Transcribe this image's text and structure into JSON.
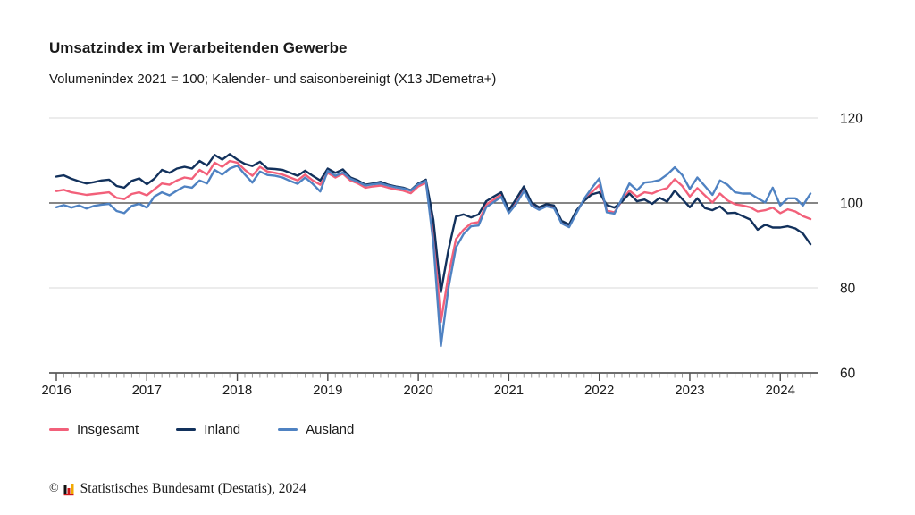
{
  "header": {
    "title": "Umsatzindex im Verarbeitenden Gewerbe",
    "subtitle": "Volumenindex 2021 = 100; Kalender- und saisonbereinigt (X13 JDemetra+)"
  },
  "chart_data": {
    "type": "line",
    "title": "Umsatzindex im Verarbeitenden Gewerbe",
    "subtitle": "Volumenindex 2021 = 100; Kalender- und saisonbereinigt (X13 JDemetra+)",
    "x_frequency": "monthly",
    "x_start": "2016-01",
    "x_end": "2024-05",
    "x_tick_years": [
      2016,
      2017,
      2018,
      2019,
      2020,
      2021,
      2022,
      2023,
      2024
    ],
    "ylim": [
      60,
      120
    ],
    "y_ticks": [
      60,
      80,
      100,
      120
    ],
    "reference_line": 100,
    "grid": "horizontal",
    "legend_position": "bottom",
    "colors": {
      "insgesamt": "#f2607a",
      "inland": "#12315c",
      "ausland": "#4f82c2",
      "reference_line": "#3f3f3f",
      "gridline": "#d9d9d9",
      "axis": "#3f3f3f"
    },
    "series": [
      {
        "name": "Insgesamt",
        "color": "#f2607a",
        "values": [
          102.8,
          103.1,
          102.5,
          102.2,
          101.9,
          102.1,
          102.3,
          102.5,
          101.2,
          100.9,
          102.1,
          102.5,
          101.8,
          103.2,
          104.6,
          104.3,
          105.3,
          106,
          105.7,
          107.8,
          106.7,
          109.5,
          108.5,
          109.9,
          109.5,
          107.8,
          106.4,
          108.5,
          107.4,
          107.1,
          106.7,
          106,
          105.3,
          106.7,
          105.3,
          104.3,
          107.1,
          106,
          106.9,
          105.3,
          104.6,
          103.6,
          103.9,
          104.1,
          103.6,
          103.2,
          102.9,
          102.3,
          103.9,
          104.8,
          93,
          72,
          83,
          91.5,
          93.7,
          95.2,
          95.5,
          99.6,
          100.8,
          101.9,
          98,
          100.4,
          103.4,
          99.8,
          98.7,
          99.5,
          99.1,
          95.5,
          94.6,
          98,
          100.7,
          102.5,
          104.2,
          98.2,
          97.8,
          100.5,
          102.9,
          101.5,
          102.5,
          102.2,
          103,
          103.5,
          105.6,
          104,
          101.5,
          103.5,
          101.8,
          100.1,
          102.2,
          100.6,
          99.7,
          99.4,
          99,
          98,
          98.3,
          98.9,
          97.6,
          98.5,
          98,
          96.9,
          96.2
        ]
      },
      {
        "name": "Inland",
        "color": "#12315c",
        "values": [
          106.2,
          106.5,
          105.7,
          105.1,
          104.6,
          104.9,
          105.3,
          105.5,
          104,
          103.6,
          105.2,
          105.8,
          104.4,
          105.7,
          107.8,
          107.1,
          108.1,
          108.5,
          108.1,
          109.9,
          108.8,
          111.3,
          110.2,
          111.5,
          110.2,
          109.2,
          108.7,
          109.7,
          108.1,
          108,
          107.8,
          107.1,
          106.4,
          107.6,
          106.4,
          105.3,
          108.1,
          107.1,
          107.9,
          106,
          105.3,
          104.3,
          104.6,
          105,
          104.3,
          103.9,
          103.6,
          103,
          104.6,
          105.5,
          96,
          79,
          89,
          96.8,
          97.3,
          96.6,
          97.3,
          100.4,
          101.5,
          102.5,
          98.3,
          101,
          103.9,
          100.1,
          99,
          99.7,
          99.4,
          95.8,
          94.9,
          98.3,
          100.5,
          102,
          102.5,
          99.5,
          98.9,
          100.3,
          102.2,
          100.4,
          100.8,
          99.8,
          101.2,
          100.3,
          102.9,
          100.9,
          99,
          101.1,
          98.8,
          98.3,
          99.2,
          97.6,
          97.7,
          96.9,
          96.1,
          93.7,
          94.9,
          94.2,
          94.2,
          94.5,
          94,
          92.8,
          90.3
        ]
      },
      {
        "name": "Ausland",
        "color": "#4f82c2",
        "values": [
          99,
          99.5,
          98.9,
          99.4,
          98.7,
          99.3,
          99.6,
          99.8,
          98.1,
          97.6,
          99.3,
          99.8,
          98.9,
          101.5,
          102.5,
          101.8,
          102.9,
          103.9,
          103.6,
          105.3,
          104.6,
          107.8,
          106.7,
          108.1,
          108.8,
          106.7,
          104.8,
          107.4,
          106.6,
          106.4,
          106,
          105.2,
          104.5,
          106,
          104.5,
          102.7,
          107.6,
          106.4,
          107.2,
          105.7,
          105,
          104.1,
          104.4,
          104.6,
          104.1,
          103.7,
          103.4,
          102.9,
          104.4,
          105.2,
          90.5,
          66.3,
          80,
          89.5,
          92.7,
          94.5,
          94.7,
          99,
          100.2,
          101.4,
          97.6,
          99.8,
          102.8,
          99.4,
          98.4,
          99.2,
          98.8,
          95.2,
          94.3,
          97.7,
          101,
          103.5,
          105.8,
          97.8,
          97.5,
          101,
          104.6,
          103,
          104.8,
          105,
          105.4,
          106.7,
          108.4,
          106.6,
          103.3,
          106,
          104,
          101.9,
          105.3,
          104.3,
          102.5,
          102.2,
          102.2,
          101.1,
          100.1,
          103.6,
          99.4,
          101.1,
          101.1,
          99.4,
          102.2
        ]
      }
    ]
  },
  "footer": {
    "copyright_symbol": "©",
    "source": "Statistisches Bundesamt (Destatis), 2024"
  }
}
